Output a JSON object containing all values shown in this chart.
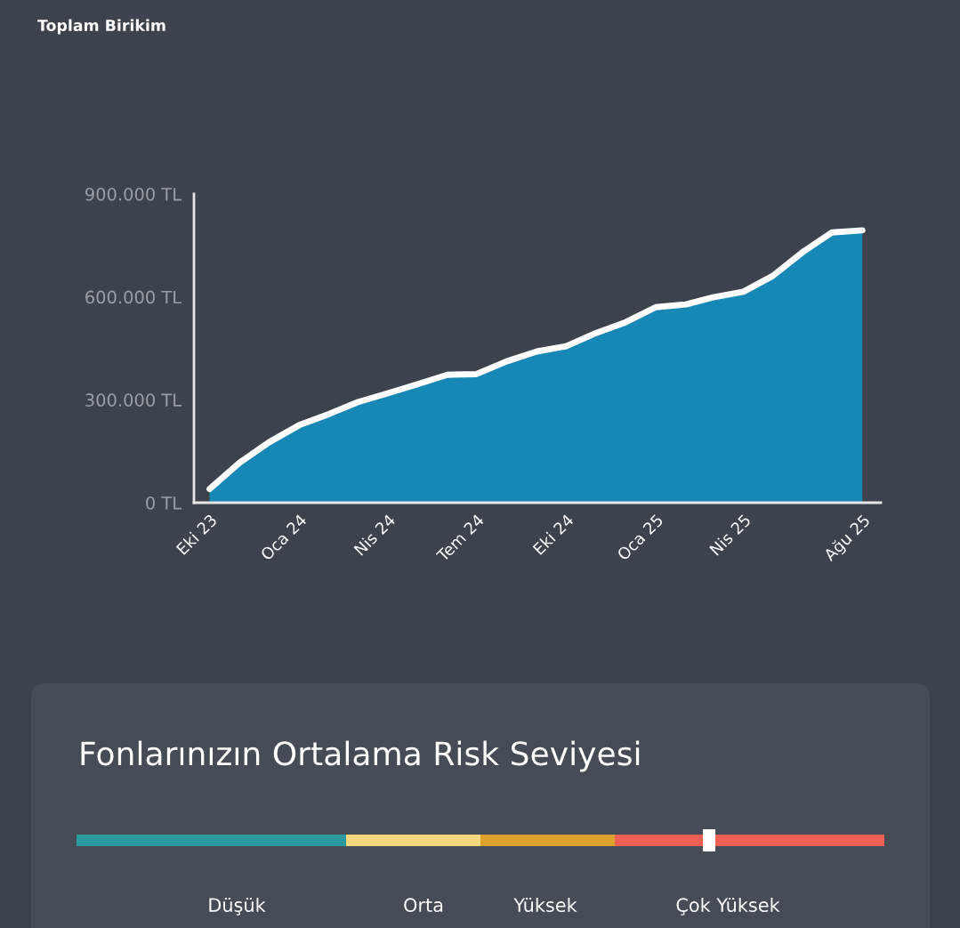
{
  "chart_data": [
    {
      "type": "area",
      "title": "Toplam Birikim",
      "x": [
        "2023-10",
        "2023-11",
        "2023-12",
        "2024-01",
        "2024-02",
        "2024-03",
        "2024-04",
        "2024-05",
        "2024-06",
        "2024-07",
        "2024-08",
        "2024-09",
        "2024-10",
        "2024-11",
        "2024-12",
        "2025-01",
        "2025-02",
        "2025-03",
        "2025-04",
        "2025-05",
        "2025-06",
        "2025-07",
        "2025-08"
      ],
      "series": [
        {
          "color": "#1787b5",
          "values": [
            40000,
            117000,
            176000,
            226000,
            259000,
            293000,
            319000,
            345000,
            373000,
            375000,
            412000,
            441000,
            456000,
            495000,
            526000,
            570000,
            578000,
            599000,
            615000,
            661000,
            731000,
            788000,
            794000
          ]
        }
      ],
      "xlim": [
        "2023-09-15",
        "2025-08-20"
      ],
      "xticks": [
        {
          "value": "2023-10",
          "label": "Eki 23"
        },
        {
          "value": "2024-01",
          "label": "Oca 24"
        },
        {
          "value": "2024-04",
          "label": "Nis 24"
        },
        {
          "value": "2024-07",
          "label": "Tem 24"
        },
        {
          "value": "2024-10",
          "label": "Eki 24"
        },
        {
          "value": "2025-01",
          "label": "Oca 25"
        },
        {
          "value": "2025-04",
          "label": "Nis 25"
        },
        {
          "value": "2025-08",
          "label": "Ağu 25"
        }
      ],
      "ylim": [
        0,
        900000
      ],
      "yticks": [
        {
          "value": 0,
          "label": "0 TL"
        },
        {
          "value": 300000,
          "label": "300.000 TL"
        },
        {
          "value": 600000,
          "label": "600.000 TL"
        },
        {
          "value": 900000,
          "label": "900.000 TL"
        }
      ],
      "grid": false,
      "legend": false
    },
    {
      "type": "other",
      "title": "Fonlarınızın Ortalama Risk Seviyesi",
      "annotations": [
        "Düşük",
        "Orta",
        "Yüksek",
        "Çok Yüksek"
      ]
    }
  ]
}
